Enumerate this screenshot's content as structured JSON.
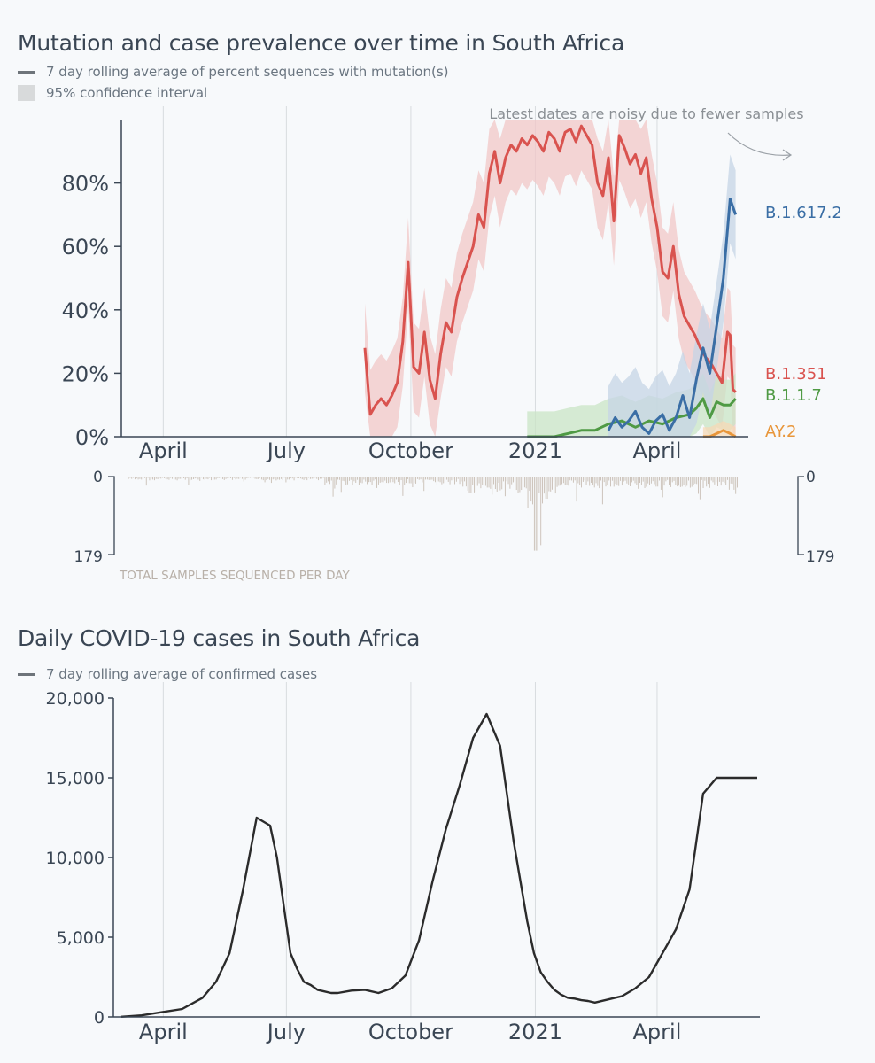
{
  "chart_data": [
    {
      "type": "line",
      "title": "Mutation and case prevalence over time in South Africa",
      "legend": {
        "line_label": "7 day rolling average of percent sequences with mutation(s)",
        "ci_label": "95% confidence interval"
      },
      "annotation": "Latest dates are noisy due to fewer samples",
      "x_ticks": [
        "April",
        "July",
        "October",
        "2021",
        "April"
      ],
      "y_ticks": [
        "0%",
        "20%",
        "40%",
        "60%",
        "80%"
      ],
      "ylim": [
        0,
        100
      ],
      "x_unit": "days since 2020-03-01",
      "xlim": [
        0,
        470
      ],
      "series": [
        {
          "name": "B.1.351",
          "color": "#d9534f",
          "x": [
            180,
            184,
            188,
            192,
            196,
            200,
            204,
            208,
            212,
            216,
            220,
            224,
            228,
            232,
            236,
            240,
            244,
            248,
            252,
            256,
            260,
            264,
            268,
            272,
            276,
            280,
            284,
            288,
            292,
            296,
            300,
            304,
            308,
            312,
            316,
            320,
            324,
            328,
            332,
            336,
            340,
            344,
            348,
            352,
            356,
            360,
            364,
            368,
            372,
            376,
            380,
            384,
            388,
            392,
            396,
            400,
            404,
            408,
            412,
            416,
            420,
            424,
            428,
            432,
            436,
            440,
            444,
            448,
            450,
            452,
            454
          ],
          "values": [
            28,
            7,
            10,
            12,
            10,
            13,
            17,
            30,
            55,
            22,
            20,
            33,
            18,
            12,
            26,
            36,
            33,
            44,
            50,
            55,
            60,
            70,
            66,
            83,
            90,
            80,
            88,
            92,
            90,
            94,
            92,
            95,
            93,
            90,
            96,
            94,
            90,
            96,
            97,
            93,
            98,
            95,
            92,
            80,
            76,
            88,
            68,
            95,
            91,
            86,
            89,
            83,
            88,
            75,
            66,
            52,
            50,
            60,
            45,
            38,
            35,
            32,
            28,
            25,
            23,
            20,
            17,
            33,
            32,
            15,
            14
          ]
        },
        {
          "name": "B.1.1.7",
          "color": "#4f9a44",
          "x": [
            300,
            310,
            320,
            330,
            340,
            350,
            360,
            370,
            380,
            390,
            400,
            410,
            420,
            425,
            430,
            435,
            440,
            445,
            450,
            454
          ],
          "values": [
            0,
            0,
            0,
            1,
            2,
            2,
            4,
            5,
            3,
            5,
            4,
            6,
            7,
            9,
            12,
            6,
            11,
            10,
            10,
            12
          ]
        },
        {
          "name": "B.1.617.2",
          "color": "#3a6ea5",
          "x": [
            360,
            365,
            370,
            375,
            380,
            385,
            390,
            395,
            400,
            405,
            410,
            415,
            420,
            425,
            430,
            435,
            440,
            445,
            450,
            454
          ],
          "values": [
            2,
            6,
            3,
            5,
            8,
            3,
            1,
            5,
            7,
            2,
            6,
            13,
            6,
            18,
            28,
            20,
            35,
            50,
            75,
            70
          ]
        },
        {
          "name": "AY.2",
          "color": "#e8963a",
          "x": [
            430,
            435,
            440,
            445,
            450,
            454
          ],
          "values": [
            0,
            0,
            1,
            2,
            1,
            0
          ]
        }
      ],
      "secondary": {
        "label": "TOTAL SAMPLES SEQUENCED PER DAY",
        "range": [
          "0",
          "179"
        ],
        "max": 179
      }
    },
    {
      "type": "line",
      "title": "Daily COVID-19 cases in South Africa",
      "legend": {
        "line_label": "7 day rolling average of confirmed cases"
      },
      "x_ticks": [
        "April",
        "July",
        "October",
        "2021",
        "April"
      ],
      "y_ticks": [
        "0",
        "5,000",
        "10,000",
        "15,000",
        "20,000"
      ],
      "ylim": [
        0,
        20000
      ],
      "xlim": [
        0,
        470
      ],
      "series": [
        {
          "name": "cases",
          "color": "#2b2b2b",
          "x": [
            0,
            15,
            30,
            45,
            60,
            70,
            80,
            90,
            100,
            110,
            115,
            120,
            125,
            130,
            135,
            140,
            145,
            150,
            155,
            160,
            170,
            180,
            190,
            200,
            210,
            220,
            230,
            240,
            250,
            260,
            270,
            280,
            290,
            300,
            305,
            310,
            315,
            320,
            325,
            330,
            335,
            340,
            345,
            350,
            360,
            370,
            380,
            390,
            400,
            410,
            420,
            430,
            440,
            450,
            455,
            460,
            465,
            470
          ],
          "values": [
            10,
            100,
            300,
            500,
            1200,
            2200,
            4000,
            8000,
            12500,
            12000,
            10000,
            7000,
            4000,
            3000,
            2200,
            2000,
            1700,
            1600,
            1500,
            1500,
            1650,
            1700,
            1500,
            1800,
            2600,
            4800,
            8500,
            11800,
            14500,
            17500,
            19000,
            17000,
            11000,
            6000,
            4000,
            2800,
            2200,
            1700,
            1400,
            1200,
            1150,
            1050,
            1000,
            900,
            1100,
            1300,
            1800,
            2500,
            4000,
            5500,
            8000,
            14000,
            15000,
            15000,
            15000,
            15000,
            15000,
            15000
          ]
        }
      ]
    }
  ],
  "colors": {
    "ci_red": "#f2c7c7",
    "ci_green": "#c9e4c5",
    "ci_blue": "#c6d4e6",
    "ci_orange": "#f6d8b5",
    "gridline": "#d8dcdf",
    "axis": "#3a4654",
    "bar": "#c9bfb5"
  }
}
